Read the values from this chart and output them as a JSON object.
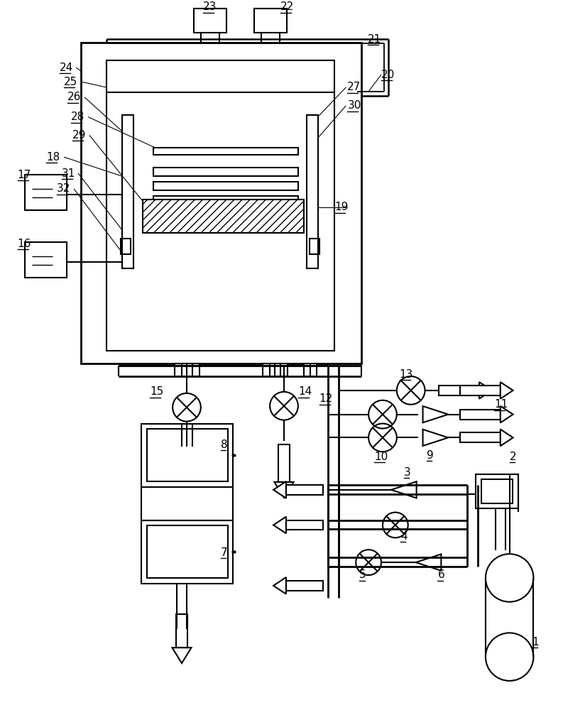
{
  "bg": "#ffffff",
  "lc": "#000000",
  "figsize": [
    7.93,
    10.0
  ],
  "dpi": 100
}
